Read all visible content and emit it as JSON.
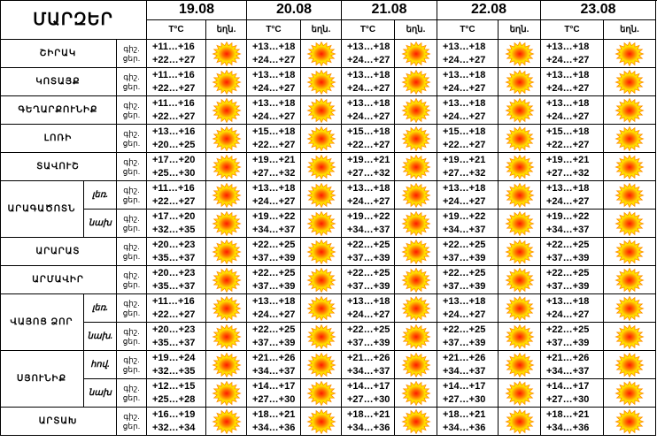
{
  "header": {
    "region_col_title": "ՄԱՐԶԵՐ",
    "dates": [
      "19.08",
      "20.08",
      "21.08",
      "22.08",
      "23.08"
    ],
    "temp_col_label": "T°C",
    "weather_col_label": "եղն."
  },
  "day_night_labels": {
    "day": "ցեր.",
    "night": "գիշ."
  },
  "weather_icon": "sun-icon",
  "colors": {
    "sun_core": "#ff1a00",
    "sun_rays": "#ffe000",
    "sun_mid": "#ff8c00"
  },
  "rows": [
    {
      "region": "ՇԻՐԱԿ",
      "sub": "",
      "temps": [
        [
          "+11…+16",
          "+22…+27"
        ],
        [
          "+13…+18",
          "+24…+27"
        ],
        [
          "+13…+18",
          "+24…+27"
        ],
        [
          "+13…+18",
          "+24…+27"
        ],
        [
          "+13…+18",
          "+24…+27"
        ]
      ]
    },
    {
      "region": "ԿՈՏԱՅՔ",
      "sub": "",
      "temps": [
        [
          "+11…+16",
          "+22…+27"
        ],
        [
          "+13…+18",
          "+24…+27"
        ],
        [
          "+13…+18",
          "+24…+27"
        ],
        [
          "+13…+18",
          "+24…+27"
        ],
        [
          "+13…+18",
          "+24…+27"
        ]
      ]
    },
    {
      "region": "ԳԵՂԱՐՔՈՒՆԻՔ",
      "sub": "",
      "temps": [
        [
          "+11…+16",
          "+22…+27"
        ],
        [
          "+13…+18",
          "+24…+27"
        ],
        [
          "+13…+18",
          "+24…+27"
        ],
        [
          "+13…+18",
          "+24…+27"
        ],
        [
          "+13…+18",
          "+24…+27"
        ]
      ]
    },
    {
      "region": "ԼՈՌԻ",
      "sub": "",
      "temps": [
        [
          "+13…+16",
          "+20…+25"
        ],
        [
          "+15…+18",
          "+22…+27"
        ],
        [
          "+15…+18",
          "+22…+27"
        ],
        [
          "+15…+18",
          "+22…+27"
        ],
        [
          "+15…+18",
          "+22…+27"
        ]
      ]
    },
    {
      "region": "ՏԱՎՈՒՇ",
      "sub": "",
      "temps": [
        [
          "+17…+20",
          "+25…+30"
        ],
        [
          "+19…+21",
          "+27…+32"
        ],
        [
          "+19…+21",
          "+27…+32"
        ],
        [
          "+19…+21",
          "+27…+32"
        ],
        [
          "+19…+21",
          "+27…+32"
        ]
      ]
    },
    {
      "region": "ԱՐԱԳԱԾՈՏՆ",
      "sub": "լեռ.",
      "temps": [
        [
          "+11…+16",
          "+22…+27"
        ],
        [
          "+13…+18",
          "+24…+27"
        ],
        [
          "+13…+18",
          "+24…+27"
        ],
        [
          "+13…+18",
          "+24…+27"
        ],
        [
          "+13…+18",
          "+24…+27"
        ]
      ]
    },
    {
      "region": "",
      "sub": "նախ",
      "temps": [
        [
          "+17…+20",
          "+32…+35"
        ],
        [
          "+19…+22",
          "+34…+37"
        ],
        [
          "+19…+22",
          "+34…+37"
        ],
        [
          "+19…+22",
          "+34…+37"
        ],
        [
          "+19…+22",
          "+34…+37"
        ]
      ]
    },
    {
      "region": "ԱՐԱՐԱՏ",
      "sub": "",
      "temps": [
        [
          "+20…+23",
          "+35…+37"
        ],
        [
          "+22…+25",
          "+37…+39"
        ],
        [
          "+22…+25",
          "+37…+39"
        ],
        [
          "+22…+25",
          "+37…+39"
        ],
        [
          "+22…+25",
          "+37…+39"
        ]
      ]
    },
    {
      "region": "ԱՐՄԱՎԻՐ",
      "sub": "",
      "temps": [
        [
          "+20…+23",
          "+35…+37"
        ],
        [
          "+22…+25",
          "+37…+39"
        ],
        [
          "+22…+25",
          "+37…+39"
        ],
        [
          "+22…+25",
          "+37…+39"
        ],
        [
          "+22…+25",
          "+37…+39"
        ]
      ]
    },
    {
      "region": "ՎԱՅՈՑ ՁՈՐ",
      "sub": "լեռ.",
      "temps": [
        [
          "+11…+16",
          "+22…+27"
        ],
        [
          "+13…+18",
          "+24…+27"
        ],
        [
          "+13…+18",
          "+24…+27"
        ],
        [
          "+13…+18",
          "+24…+27"
        ],
        [
          "+13…+18",
          "+24…+27"
        ]
      ]
    },
    {
      "region": "",
      "sub": "նախ.",
      "temps": [
        [
          "+20…+23",
          "+35…+37"
        ],
        [
          "+22…+25",
          "+37…+39"
        ],
        [
          "+22…+25",
          "+37…+39"
        ],
        [
          "+22…+25",
          "+37…+39"
        ],
        [
          "+22…+25",
          "+37…+39"
        ]
      ]
    },
    {
      "region": "ՍՅՈՒՆԻՔ",
      "sub": "հով.",
      "temps": [
        [
          "+19…+24",
          "+32…+35"
        ],
        [
          "+21…+26",
          "+34…+37"
        ],
        [
          "+21…+26",
          "+34…+37"
        ],
        [
          "+21…+26",
          "+34…+37"
        ],
        [
          "+21…+26",
          "+34…+37"
        ]
      ]
    },
    {
      "region": "",
      "sub": "նախ",
      "temps": [
        [
          "+12…+15",
          "+25…+28"
        ],
        [
          "+14…+17",
          "+27…+30"
        ],
        [
          "+14…+17",
          "+27…+30"
        ],
        [
          "+14…+17",
          "+27…+30"
        ],
        [
          "+14…+17",
          "+27…+30"
        ]
      ]
    },
    {
      "region": "ԱՐՏԱԽ",
      "sub": "",
      "temps": [
        [
          "+16…+19",
          "+32…+34"
        ],
        [
          "+18…+21",
          "+34…+36"
        ],
        [
          "+18…+21",
          "+34…+36"
        ],
        [
          "+18…+21",
          "+34…+36"
        ],
        [
          "+18…+21",
          "+34…+36"
        ]
      ]
    }
  ]
}
